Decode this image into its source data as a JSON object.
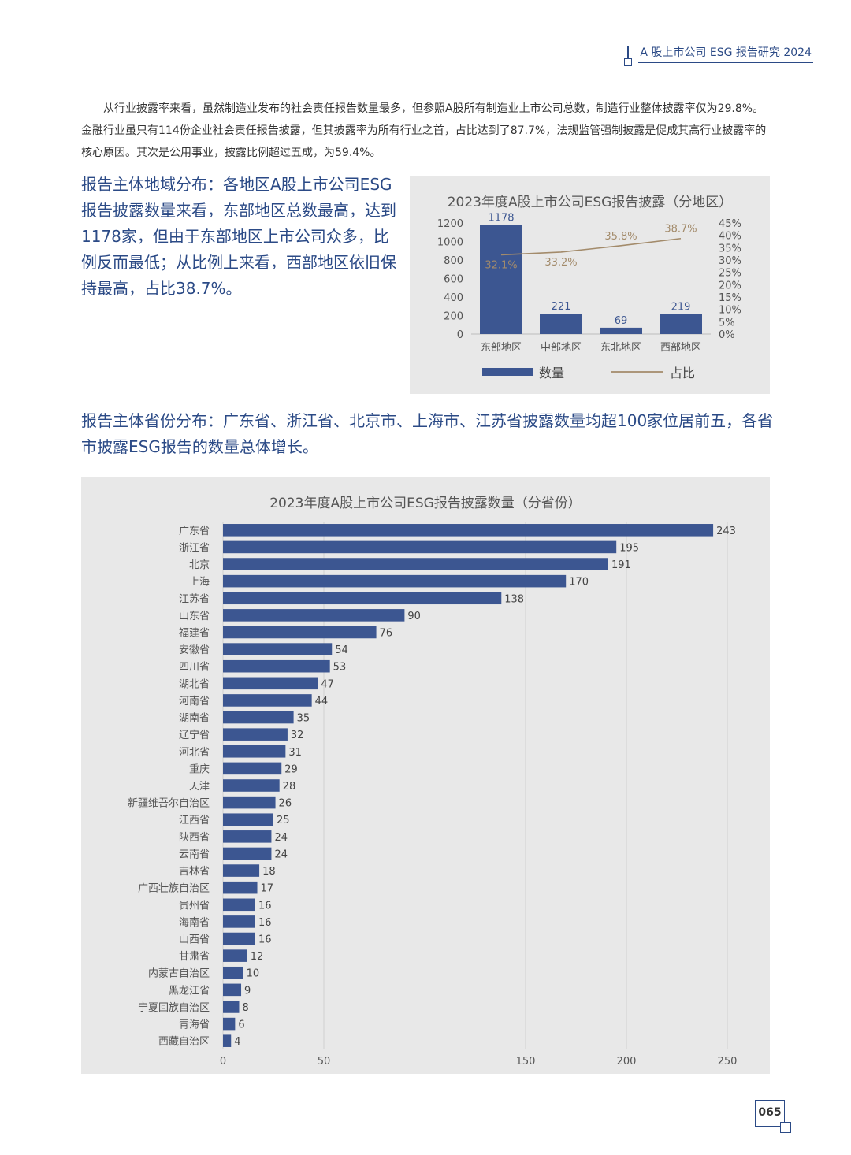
{
  "header": {
    "title": "A 股上市公司 ESG 报告研究 2024"
  },
  "intro_paragraph": "从行业披露率来看，虽然制造业发布的社会责任报告数量最多，但参照A股所有制造业上市公司总数，制造行业整体披露率仅为29.8%。金融行业虽只有114份企业社会责任报告披露，但其披露率为所有行业之首，占比达到了87.7%，法规监管强制披露是促成其高行业披露率的核心原因。其次是公用事业，披露比例超过五成，为59.4%。",
  "region_text": "报告主体地域分布：各地区A股上市公司ESG报告披露数量来看，东部地区总数最高，达到1178家，但由于东部地区上市公司众多，比例反而最低；从比例上来看，西部地区依旧保持最高，占比38.7%。",
  "province_text": "报告主体省份分布：广东省、浙江省、北京市、上海市、江苏省披露数量均超100家位居前五，各省市披露ESG报告的数量总体增长。",
  "page_number": "065",
  "colors": {
    "accent": "#2b4a86",
    "bar": "#3c5691",
    "line": "#a38b6b",
    "panel": "#e8e8e8"
  },
  "chart_data": [
    {
      "type": "bar",
      "title": "2023年度A股上市公司ESG报告披露（分地区）",
      "categories": [
        "东部地区",
        "中部地区",
        "东北地区",
        "西部地区"
      ],
      "series": [
        {
          "name": "数量",
          "type": "bar",
          "axis": "left",
          "values": [
            1178,
            221,
            69,
            219
          ],
          "labels": [
            "1178",
            "221",
            "69",
            "219"
          ]
        },
        {
          "name": "占比",
          "type": "line",
          "axis": "right",
          "values": [
            32.1,
            33.2,
            35.8,
            38.7
          ],
          "labels": [
            "32.1%",
            "33.2%",
            "35.8%",
            "38.7%"
          ]
        }
      ],
      "ylim_left": [
        0,
        1200
      ],
      "yticks_left": [
        "0",
        "200",
        "400",
        "600",
        "800",
        "1000",
        "1200"
      ],
      "ylim_right": [
        0,
        45
      ],
      "yticks_right": [
        "0%",
        "5%",
        "10%",
        "15%",
        "20%",
        "25%",
        "30%",
        "35%",
        "40%",
        "45%"
      ],
      "legend_position": "bottom",
      "grid": false
    },
    {
      "type": "bar",
      "orientation": "horizontal",
      "title": "2023年度A股上市公司ESG报告披露数量（分省份）",
      "categories": [
        "广东省",
        "浙江省",
        "北京",
        "上海",
        "江苏省",
        "山东省",
        "福建省",
        "安徽省",
        "四川省",
        "湖北省",
        "河南省",
        "湖南省",
        "辽宁省",
        "河北省",
        "重庆",
        "天津",
        "新疆维吾尔自治区",
        "江西省",
        "陕西省",
        "云南省",
        "吉林省",
        "广西壮族自治区",
        "贵州省",
        "海南省",
        "山西省",
        "甘肃省",
        "内蒙古自治区",
        "黑龙江省",
        "宁夏回族自治区",
        "青海省",
        "西藏自治区"
      ],
      "values": [
        243,
        195,
        191,
        170,
        138,
        90,
        76,
        54,
        53,
        47,
        44,
        35,
        32,
        31,
        29,
        28,
        26,
        25,
        24,
        24,
        18,
        17,
        16,
        16,
        16,
        12,
        10,
        9,
        8,
        6,
        4
      ],
      "value_labels": [
        "243",
        "195",
        "191",
        "170",
        "138",
        "90",
        "76",
        "54",
        "53",
        "47",
        "44",
        "35",
        "32",
        "31",
        "29",
        "28",
        "26",
        "25",
        "24",
        "24",
        "18",
        "17",
        "16",
        "16",
        "16",
        "12",
        "10",
        "9",
        "8",
        "6",
        "4"
      ],
      "xlim": [
        0,
        250
      ],
      "xticks": [
        "0",
        "50",
        "150",
        "200",
        "250"
      ],
      "xtick_values": [
        0,
        50,
        150,
        200,
        250
      ],
      "grid": true
    }
  ]
}
